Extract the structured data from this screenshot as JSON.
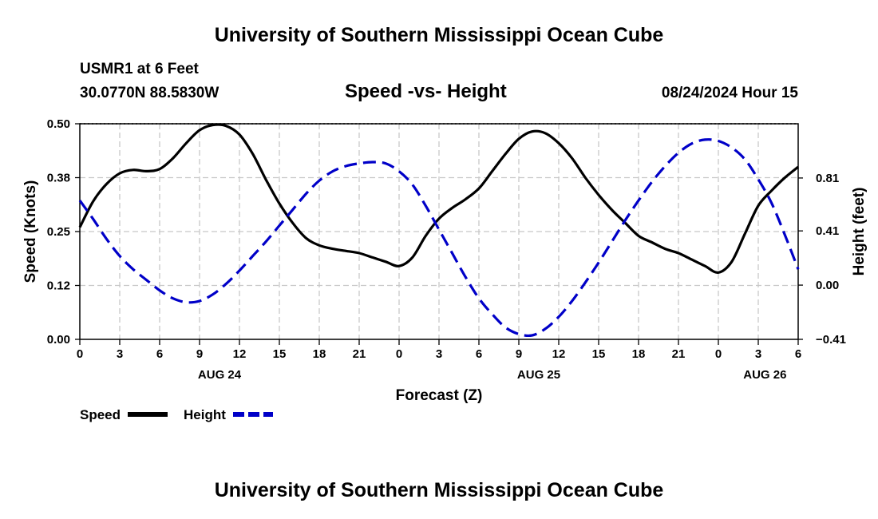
{
  "header": {
    "title": "University of Southern Mississippi Ocean Cube",
    "station": "USMR1 at 6 Feet",
    "coords": "30.0770N  88.5830W",
    "datetime": "08/24/2024 Hour 15",
    "footer_title": "University of Southern Mississippi Ocean Cube"
  },
  "colors": {
    "speed": "#000000",
    "height": "#0000c8",
    "grid": "#c8c8c8"
  },
  "chart_data": {
    "type": "line",
    "title": "Speed -vs- Height",
    "xlabel": "Forecast (Z)",
    "ylabel": "Speed (Knots)",
    "y2label": "Height (feet)",
    "xlim": [
      0,
      54
    ],
    "ylim": [
      0,
      0.5
    ],
    "y2lim": [
      -0.41,
      1.22
    ],
    "x_ticks": [
      0,
      3,
      6,
      9,
      12,
      15,
      18,
      21,
      24,
      27,
      30,
      33,
      36,
      39,
      42,
      45,
      48,
      51,
      54
    ],
    "x_tick_labels": [
      "0",
      "3",
      "6",
      "9",
      "12",
      "15",
      "18",
      "21",
      "0",
      "3",
      "6",
      "9",
      "12",
      "15",
      "18",
      "21",
      "0",
      "3",
      "6"
    ],
    "y_ticks": [
      0.0,
      0.125,
      0.25,
      0.375,
      0.5
    ],
    "y_tick_labels": [
      "0.00",
      "0.12",
      "0.25",
      "0.38",
      "0.50"
    ],
    "y2_ticks": [
      -0.41,
      0.0,
      0.41,
      0.81
    ],
    "y2_tick_labels": [
      "−0.41",
      "0.00",
      "0.41",
      "0.81"
    ],
    "date_labels": [
      {
        "x": 10.5,
        "label": "AUG 24"
      },
      {
        "x": 34.5,
        "label": "AUG 25"
      },
      {
        "x": 51.5,
        "label": "AUG 26"
      }
    ],
    "legend_position": "bottom-left",
    "series": [
      {
        "name": "Speed",
        "axis": "left",
        "style": "solid",
        "x": [
          0,
          1,
          2,
          3,
          4,
          5,
          6,
          7,
          8,
          9,
          10,
          11,
          12,
          13,
          14,
          15,
          16,
          17,
          18,
          19,
          20,
          21,
          22,
          23,
          24,
          25,
          26,
          27,
          28,
          29,
          30,
          31,
          32,
          33,
          34,
          35,
          36,
          37,
          38,
          39,
          40,
          41,
          42,
          43,
          44,
          45,
          46,
          47,
          48,
          49,
          50,
          51,
          52,
          53,
          54
        ],
        "values": [
          0.26,
          0.32,
          0.36,
          0.385,
          0.393,
          0.39,
          0.395,
          0.42,
          0.455,
          0.485,
          0.497,
          0.495,
          0.475,
          0.43,
          0.37,
          0.315,
          0.27,
          0.235,
          0.218,
          0.21,
          0.205,
          0.2,
          0.19,
          0.18,
          0.17,
          0.19,
          0.24,
          0.28,
          0.305,
          0.325,
          0.35,
          0.39,
          0.43,
          0.465,
          0.482,
          0.478,
          0.455,
          0.42,
          0.375,
          0.335,
          0.3,
          0.27,
          0.24,
          0.225,
          0.21,
          0.2,
          0.185,
          0.17,
          0.155,
          0.18,
          0.245,
          0.31,
          0.345,
          0.375,
          0.4
        ]
      },
      {
        "name": "Height",
        "axis": "right",
        "style": "dashed",
        "x": [
          0,
          1,
          2,
          3,
          4,
          5,
          6,
          7,
          8,
          9,
          10,
          11,
          12,
          13,
          14,
          15,
          16,
          17,
          18,
          19,
          20,
          21,
          22,
          23,
          24,
          25,
          26,
          27,
          28,
          29,
          30,
          31,
          32,
          33,
          34,
          35,
          36,
          37,
          38,
          39,
          40,
          41,
          42,
          43,
          44,
          45,
          46,
          47,
          48,
          49,
          50,
          51,
          52,
          53,
          54
        ],
        "values": [
          0.64,
          0.5,
          0.35,
          0.22,
          0.12,
          0.04,
          -0.04,
          -0.1,
          -0.13,
          -0.12,
          -0.07,
          0.01,
          0.11,
          0.22,
          0.33,
          0.45,
          0.57,
          0.69,
          0.79,
          0.86,
          0.9,
          0.92,
          0.93,
          0.92,
          0.86,
          0.76,
          0.6,
          0.42,
          0.24,
          0.06,
          -0.1,
          -0.22,
          -0.32,
          -0.37,
          -0.38,
          -0.33,
          -0.24,
          -0.12,
          0.02,
          0.17,
          0.33,
          0.49,
          0.64,
          0.78,
          0.9,
          1.0,
          1.07,
          1.1,
          1.09,
          1.04,
          0.95,
          0.8,
          0.62,
          0.38,
          0.12
        ]
      }
    ],
    "legend": [
      {
        "name": "Speed",
        "style": "solid"
      },
      {
        "name": "Height",
        "style": "dashed"
      }
    ]
  }
}
